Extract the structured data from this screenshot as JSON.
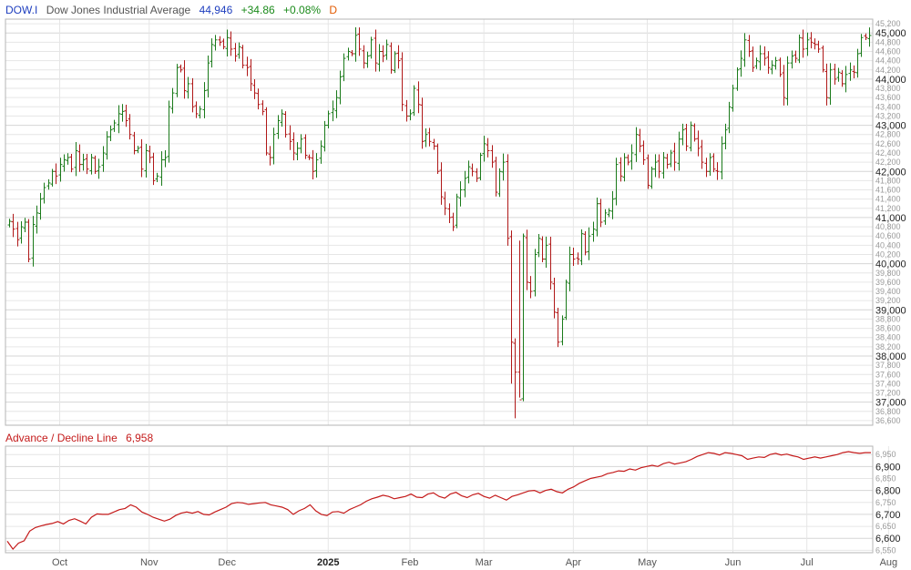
{
  "header": {
    "symbol": "DOW.I",
    "name": "Dow Jones Industrial Average",
    "last": "44,946",
    "change": "+34.86",
    "change_pct": "+0.08%",
    "interval": "D"
  },
  "indicator": {
    "name": "Advance / Decline Line",
    "last": "6,958"
  },
  "colors": {
    "symbol": "#1f3fbf",
    "name": "#555555",
    "last": "#1f3fbf",
    "change": "#1a8a1a",
    "interval": "#e25a00",
    "up_bar": "#1a7a1a",
    "down_bar": "#b01818",
    "ad_line": "#c41a1a",
    "grid": "#e6e6e6",
    "frame": "#b5b5b5",
    "indicator_title": "#c41a1a"
  },
  "chart_data": [
    {
      "type": "ohlc",
      "title": "Dow Jones Industrial Average",
      "y_axis_side": "right",
      "ylim": [
        36500,
        45300
      ],
      "y_major_ticks": [
        "37,000",
        "38,000",
        "39,000",
        "40,000",
        "41,000",
        "42,000",
        "43,000",
        "44,000",
        "45,000"
      ],
      "y_minor_ticks": [
        "36,600",
        "36,800",
        "37,200",
        "37,400",
        "37,600",
        "37,800",
        "38,200",
        "38,400",
        "38,600",
        "38,800",
        "39,200",
        "39,400",
        "39,600",
        "39,800",
        "40,200",
        "40,400",
        "40,600",
        "40,800",
        "41,200",
        "41,400",
        "41,600",
        "41,800",
        "42,200",
        "42,400",
        "42,600",
        "42,800",
        "43,200",
        "43,400",
        "43,600",
        "43,800",
        "44,200",
        "44,400",
        "44,600",
        "44,800",
        "45,200"
      ],
      "x_tick_labels": [
        "Oct",
        "Nov",
        "Dec",
        "2025",
        "Feb",
        "Mar",
        "Apr",
        "May",
        "Jun",
        "Jul",
        "Aug"
      ],
      "x_tick_index": [
        13,
        36,
        56,
        82,
        103,
        122,
        145,
        164,
        186,
        205,
        226
      ],
      "grid": true,
      "closes": [
        40920,
        40750,
        40520,
        40800,
        40900,
        40100,
        40850,
        41100,
        41400,
        41650,
        41750,
        42000,
        41900,
        42150,
        42250,
        42300,
        42050,
        42450,
        42150,
        42250,
        42050,
        42300,
        42000,
        42100,
        42400,
        42750,
        42900,
        43050,
        43250,
        43300,
        43100,
        42800,
        42450,
        42500,
        42050,
        42450,
        42300,
        41800,
        41900,
        42250,
        42300,
        43400,
        43700,
        44250,
        44200,
        43750,
        43900,
        43400,
        43250,
        43350,
        43750,
        44350,
        44750,
        44850,
        44800,
        44700,
        44900,
        44650,
        44500,
        44700,
        44300,
        44250,
        43900,
        43700,
        43450,
        43300,
        42400,
        42300,
        42800,
        43100,
        43250,
        42800,
        42650,
        42400,
        42500,
        42700,
        42350,
        42300,
        42000,
        42250,
        42550,
        43000,
        43250,
        43350,
        43600,
        44050,
        44450,
        44600,
        44550,
        44950,
        44650,
        44350,
        44500,
        44850,
        44350,
        44600,
        44500,
        44750,
        44200,
        44550,
        44400,
        43450,
        43200,
        43250,
        43800,
        43450,
        42650,
        42800,
        42650,
        42550,
        42000,
        41450,
        41200,
        41000,
        40800,
        41450,
        41600,
        41850,
        42100,
        42000,
        41850,
        42350,
        42600,
        42450,
        42200,
        41550,
        42000,
        42200,
        40550,
        38300,
        37650,
        37050,
        40600,
        39600,
        39400,
        40200,
        40550,
        40100,
        40400,
        39600,
        38950,
        38300,
        38800,
        39600,
        40200,
        40100,
        40100,
        40650,
        40250,
        40600,
        40750,
        41300,
        40900,
        41100,
        41150,
        41400,
        42150,
        41900,
        42300,
        42200,
        42400,
        42800,
        42550,
        42250,
        41700,
        42050,
        42200,
        42000,
        42300,
        42150,
        42400,
        42200,
        42700,
        42900,
        42550,
        43000,
        42700,
        42500,
        42200,
        42000,
        42300,
        42050,
        42000,
        42600,
        42900,
        43400,
        43800,
        44200,
        44450,
        44850,
        44600,
        44250,
        44400,
        44550,
        44450,
        44250,
        44300,
        44400,
        44100,
        43600,
        44350,
        44500,
        44450,
        44900,
        44650,
        44850,
        44800,
        44750,
        44650,
        44200,
        43600,
        44200,
        44000,
        44150,
        43900,
        44100,
        44200,
        44150,
        44550,
        44900,
        44900,
        44946
      ],
      "ad_line": {
        "name": "Advance / Decline Line",
        "ylim": [
          6540,
          6985
        ],
        "y_major_ticks": [
          "6,600",
          "6,700",
          "6,800",
          "6,900"
        ],
        "y_minor_ticks": [
          "6,550",
          "6,650",
          "6,750",
          "6,850",
          "6,950"
        ],
        "values": [
          6588,
          6555,
          6580,
          6590,
          6630,
          6645,
          6652,
          6658,
          6662,
          6670,
          6660,
          6675,
          6682,
          6672,
          6660,
          6688,
          6702,
          6700,
          6700,
          6710,
          6720,
          6725,
          6740,
          6730,
          6710,
          6700,
          6688,
          6680,
          6672,
          6680,
          6695,
          6705,
          6710,
          6705,
          6712,
          6700,
          6698,
          6710,
          6720,
          6730,
          6745,
          6750,
          6748,
          6742,
          6745,
          6748,
          6750,
          6740,
          6735,
          6730,
          6720,
          6700,
          6715,
          6725,
          6740,
          6715,
          6700,
          6695,
          6710,
          6712,
          6705,
          6720,
          6730,
          6740,
          6755,
          6765,
          6772,
          6780,
          6775,
          6765,
          6770,
          6775,
          6785,
          6772,
          6770,
          6785,
          6790,
          6775,
          6768,
          6785,
          6792,
          6778,
          6770,
          6782,
          6788,
          6775,
          6768,
          6780,
          6770,
          6760,
          6775,
          6782,
          6790,
          6798,
          6800,
          6790,
          6800,
          6805,
          6795,
          6790,
          6805,
          6815,
          6830,
          6840,
          6850,
          6855,
          6860,
          6870,
          6875,
          6882,
          6880,
          6890,
          6885,
          6895,
          6900,
          6905,
          6900,
          6912,
          6918,
          6910,
          6915,
          6920,
          6930,
          6942,
          6950,
          6958,
          6955,
          6948,
          6958,
          6955,
          6950,
          6945,
          6930,
          6935,
          6940,
          6938,
          6950,
          6955,
          6948,
          6952,
          6945,
          6940,
          6930,
          6935,
          6940,
          6935,
          6940,
          6945,
          6950,
          6958,
          6962,
          6958,
          6955,
          6958,
          6958
        ]
      }
    }
  ]
}
